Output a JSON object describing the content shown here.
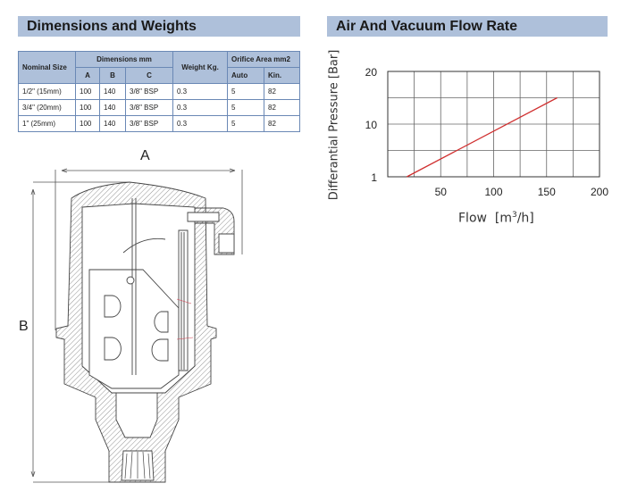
{
  "dimensions": {
    "title": "Dimensions and Weights",
    "headers": {
      "nominal_size": "Nominal Size",
      "dimensions": "Dimensions mm",
      "a": "A",
      "b": "B",
      "c": "C",
      "weight": "Weight Kg.",
      "orifice": "Orifice Area mm2",
      "auto": "Auto",
      "kin": "Kin."
    },
    "rows": [
      [
        "1/2\"  (15mm)",
        "100",
        "140",
        "3/8\"  BSP",
        "0.3",
        "5",
        "82"
      ],
      [
        "3/4\"  (20mm)",
        "100",
        "140",
        "3/8\"  BSP",
        "0.3",
        "5",
        "82"
      ],
      [
        "1\"  (25mm)",
        "100",
        "140",
        "3/8\"  BSP",
        "0.3",
        "5",
        "82"
      ]
    ]
  },
  "drawing": {
    "label_a": "A",
    "label_b": "B",
    "accent_line": "#d04050"
  },
  "flow": {
    "title": "Air And Vacuum Flow Rate"
  },
  "chart_data": {
    "type": "line",
    "title": "",
    "xlabel": "Flow  [m3/h]",
    "xlabel_main": "Flow  [m",
    "xlabel_sup": "3",
    "xlabel_end": "/h]",
    "ylabel": "Differantial Pressure [Bar]",
    "xlim": [
      0,
      200
    ],
    "x_ticks": [
      "50",
      "100",
      "150",
      "200"
    ],
    "y_ticks": [
      "1",
      "10",
      "20"
    ],
    "grid": true,
    "series": [
      {
        "color": "#d03030",
        "points": [
          [
            18,
            1
          ],
          [
            160,
            15
          ]
        ]
      }
    ]
  }
}
